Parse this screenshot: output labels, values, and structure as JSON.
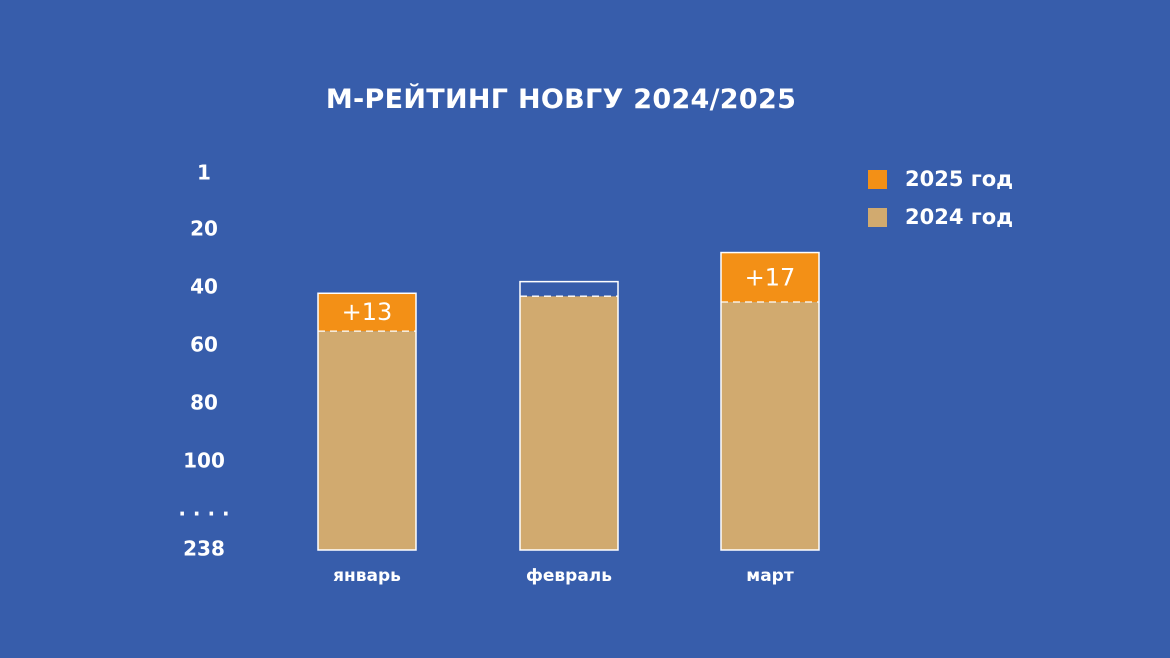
{
  "chart_data": {
    "type": "bar",
    "title": "М-РЕЙТИНГ НОВГУ 2024/2025",
    "categories": [
      "январь",
      "февраль",
      "март"
    ],
    "series": [
      {
        "name": "2025 год",
        "values": [
          42,
          38,
          28
        ]
      },
      {
        "name": "2024 год",
        "values": [
          55,
          43,
          45
        ]
      }
    ],
    "deltas": [
      "+13",
      "",
      "+17"
    ],
    "y_axis": {
      "inverted": true,
      "ticks": [
        "1",
        "20",
        "40",
        "60",
        "80",
        "100",
        ". . . .",
        "238"
      ],
      "ylim": [
        1,
        238
      ],
      "broken_after": 100
    },
    "legend": {
      "position": "top-right"
    },
    "grid": false,
    "colors": {
      "background": "#375dab",
      "series_2025": "#f39016",
      "series_2024": "#d1aa6f",
      "bar_outline": "#ffffff",
      "text": "#ffffff"
    }
  }
}
